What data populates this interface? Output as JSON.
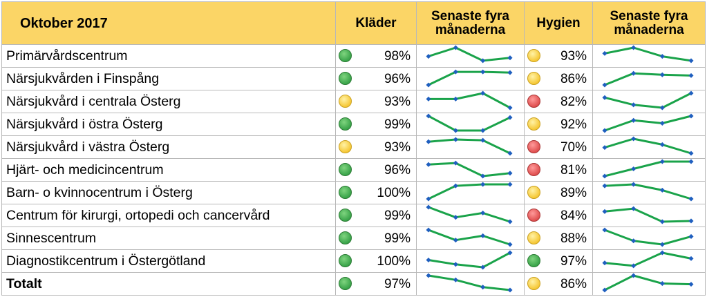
{
  "header": {
    "period": "Oktober 2017",
    "col_klader": "Kläder",
    "col_trend1_line1": "Senaste fyra",
    "col_trend1_line2": "månaderna",
    "col_hygien": "Hygien",
    "col_trend2_line1": "Senaste fyra",
    "col_trend2_line2": "månaderna"
  },
  "colors": {
    "header_bg": "#fbd566",
    "spark_line": "#1aa34a",
    "spark_marker": "#1f5fbf"
  },
  "rows": [
    {
      "name": "Primärvårdscentrum",
      "klader": "98%",
      "klader_status": "green",
      "klader_trend": [
        0.4,
        1,
        0.1,
        0.3
      ],
      "hygien": "93%",
      "hygien_status": "yellow",
      "hygien_trend": [
        0.6,
        1,
        0.4,
        0.1
      ]
    },
    {
      "name": "Närsjukvården i Finspång",
      "klader": "96%",
      "klader_status": "green",
      "klader_trend": [
        0,
        0.9,
        0.9,
        0.85
      ],
      "hygien": "86%",
      "hygien_status": "yellow",
      "hygien_trend": [
        0,
        0.8,
        0.7,
        0.65
      ]
    },
    {
      "name": "Närsjukvård i centrala Österg",
      "klader": "93%",
      "klader_status": "yellow",
      "klader_trend": [
        0.6,
        0.6,
        1,
        0
      ],
      "hygien": "82%",
      "hygien_status": "red",
      "hygien_trend": [
        0.7,
        0.2,
        0,
        1
      ]
    },
    {
      "name": "Närsjukvård i östra Österg",
      "klader": "99%",
      "klader_status": "green",
      "klader_trend": [
        1,
        0,
        0,
        0.9
      ],
      "hygien": "92%",
      "hygien_status": "yellow",
      "hygien_trend": [
        0,
        0.7,
        0.5,
        1
      ]
    },
    {
      "name": "Närsjukvård i västra Österg",
      "klader": "93%",
      "klader_status": "yellow",
      "klader_trend": [
        0.8,
        0.95,
        0.9,
        0
      ],
      "hygien": "70%",
      "hygien_status": "red",
      "hygien_trend": [
        0.4,
        1,
        0.6,
        0
      ]
    },
    {
      "name": "Hjärt- och medicincentrum",
      "klader": "96%",
      "klader_status": "green",
      "klader_trend": [
        0.8,
        0.9,
        0,
        0.2
      ],
      "hygien": "81%",
      "hygien_status": "red",
      "hygien_trend": [
        0,
        0.5,
        1,
        1
      ]
    },
    {
      "name": "Barn- o kvinnocentrum i Österg",
      "klader": "100%",
      "klader_status": "green",
      "klader_trend": [
        0,
        0.9,
        1,
        1
      ],
      "hygien": "89%",
      "hygien_status": "yellow",
      "hygien_trend": [
        0.9,
        1,
        0.6,
        0
      ]
    },
    {
      "name": "Centrum för kirurgi, ortopedi och cancervård",
      "klader": "99%",
      "klader_status": "green",
      "klader_trend": [
        1,
        0.3,
        0.6,
        0
      ],
      "hygien": "84%",
      "hygien_status": "red",
      "hygien_trend": [
        0.7,
        0.9,
        0,
        0.05
      ]
    },
    {
      "name": "Sinnescentrum",
      "klader": "99%",
      "klader_status": "green",
      "klader_trend": [
        1,
        0.3,
        0.6,
        0
      ],
      "hygien": "88%",
      "hygien_status": "yellow",
      "hygien_trend": [
        1,
        0.25,
        0,
        0.55
      ]
    },
    {
      "name": "Diagnostikcentrum i Östergötland",
      "klader": "100%",
      "klader_status": "green",
      "klader_trend": [
        0.5,
        0.2,
        0,
        1
      ],
      "hygien": "97%",
      "hygien_status": "green",
      "hygien_trend": [
        0.3,
        0.1,
        1,
        0.6
      ]
    },
    {
      "name": "Totalt",
      "klader": "97%",
      "klader_status": "green",
      "klader_trend": [
        1,
        0.7,
        0.2,
        0
      ],
      "hygien": "86%",
      "hygien_status": "yellow",
      "hygien_trend": [
        0,
        1,
        0.45,
        0.4
      ],
      "total": true
    }
  ]
}
